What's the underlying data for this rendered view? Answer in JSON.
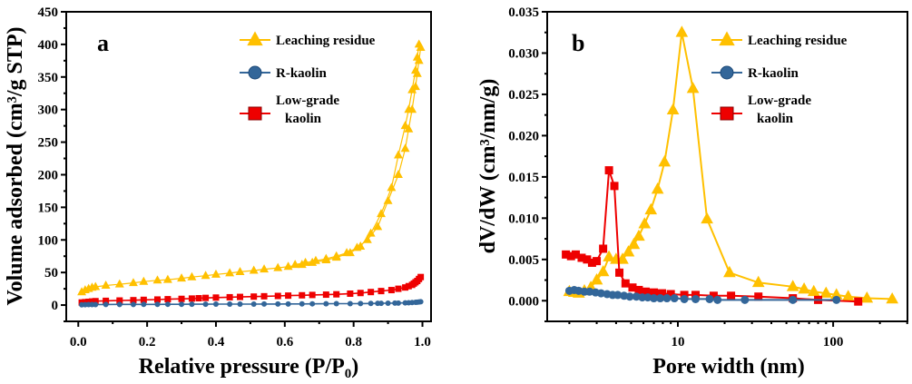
{
  "colors": {
    "leaching": "#FFC000",
    "rkaolin": "#336699",
    "lowgrade": "#EE0000"
  },
  "chart_data": [
    {
      "type": "line",
      "panel_label": "a",
      "xlabel": "Relative pressure (P/P",
      "xlabel_sub": "0",
      "xlabel_end": ")",
      "ylabel": "Volume adsorbed (cm³/g STP)",
      "xlim": [
        -0.035,
        1.025
      ],
      "ylim": [
        -25,
        450
      ],
      "xticks": [
        0.0,
        0.2,
        0.4,
        0.6,
        0.8,
        1.0
      ],
      "xtick_labels": [
        "0.0",
        "0.2",
        "0.4",
        "0.6",
        "0.8",
        "1.0"
      ],
      "yticks": [
        0,
        50,
        100,
        150,
        200,
        250,
        300,
        350,
        400,
        450
      ],
      "ytick_labels": [
        "0",
        "50",
        "100",
        "150",
        "200",
        "250",
        "300",
        "350",
        "400",
        "450"
      ],
      "legend_position": "top-right",
      "series": [
        {
          "name": "Leaching residue",
          "color_key": "leaching",
          "marker": "triangle",
          "x": [
            0.01,
            0.02,
            0.03,
            0.04,
            0.05,
            0.08,
            0.12,
            0.16,
            0.19,
            0.23,
            0.26,
            0.3,
            0.33,
            0.37,
            0.4,
            0.44,
            0.47,
            0.51,
            0.54,
            0.58,
            0.61,
            0.65,
            0.68,
            0.72,
            0.75,
            0.79,
            0.82,
            0.85,
            0.88,
            0.91,
            0.93,
            0.95,
            0.96,
            0.97,
            0.98,
            0.985,
            0.99,
            0.995,
            0.99,
            0.985,
            0.98,
            0.97,
            0.96,
            0.95,
            0.93,
            0.9,
            0.87,
            0.84,
            0.81,
            0.78,
            0.75,
            0.72,
            0.69,
            0.66,
            0.63
          ],
          "y": [
            20,
            23,
            25,
            27,
            28,
            30,
            32,
            34,
            36,
            38,
            39,
            41,
            43,
            45,
            47,
            49,
            51,
            53,
            55,
            57,
            59,
            62,
            65,
            69,
            73,
            80,
            90,
            110,
            140,
            180,
            230,
            275,
            300,
            330,
            360,
            380,
            400,
            395,
            375,
            355,
            335,
            300,
            270,
            240,
            200,
            160,
            120,
            100,
            88,
            80,
            75,
            71,
            68,
            65,
            62
          ]
        },
        {
          "name": "R-kaolin",
          "color_key": "rkaolin",
          "marker": "circle",
          "x": [
            0.01,
            0.02,
            0.03,
            0.04,
            0.05,
            0.08,
            0.12,
            0.16,
            0.19,
            0.23,
            0.26,
            0.3,
            0.33,
            0.37,
            0.4,
            0.44,
            0.47,
            0.51,
            0.54,
            0.58,
            0.61,
            0.65,
            0.68,
            0.72,
            0.75,
            0.79,
            0.82,
            0.85,
            0.87,
            0.88,
            0.9,
            0.92,
            0.93,
            0.95,
            0.96,
            0.97,
            0.98,
            0.985,
            0.99,
            0.995
          ],
          "y": [
            0.5,
            0.6,
            0.7,
            0.8,
            0.8,
            0.9,
            1.0,
            1.0,
            1.1,
            1.1,
            1.2,
            1.2,
            1.3,
            1.3,
            1.4,
            1.4,
            1.5,
            1.5,
            1.6,
            1.6,
            1.7,
            1.8,
            1.9,
            2.0,
            2.1,
            2.2,
            2.3,
            2.5,
            2.6,
            2.7,
            2.8,
            3.0,
            3.1,
            3.4,
            3.6,
            3.9,
            4.2,
            4.5,
            4.8,
            5.2
          ]
        },
        {
          "name": "Low-grade\nkaolin",
          "color_key": "lowgrade",
          "marker": "square",
          "x": [
            0.01,
            0.02,
            0.03,
            0.04,
            0.05,
            0.08,
            0.12,
            0.16,
            0.19,
            0.23,
            0.26,
            0.3,
            0.33,
            0.35,
            0.37,
            0.4,
            0.44,
            0.47,
            0.51,
            0.54,
            0.58,
            0.61,
            0.65,
            0.68,
            0.72,
            0.75,
            0.79,
            0.82,
            0.85,
            0.88,
            0.91,
            0.93,
            0.95,
            0.96,
            0.97,
            0.975,
            0.98,
            0.985,
            0.99,
            0.995
          ],
          "y": [
            4,
            4.5,
            5,
            5.5,
            6,
            6.5,
            7,
            7.5,
            8,
            8.5,
            9,
            9.5,
            10,
            10.5,
            11,
            11.5,
            12,
            12.5,
            13,
            13.5,
            14,
            14.5,
            15,
            15.5,
            16,
            16.5,
            17.5,
            18.5,
            20,
            21.5,
            23,
            25,
            27,
            29,
            31,
            33,
            35,
            37,
            40,
            43
          ]
        }
      ]
    },
    {
      "type": "line",
      "panel_label": "b",
      "xlabel": "Pore width (nm)",
      "ylabel": "dV/dW (cm³/nm/g)",
      "xscale": "log",
      "xlim": [
        1.44,
        301
      ],
      "ylim": [
        -0.0025,
        0.035
      ],
      "xticks": [
        10,
        100
      ],
      "xtick_labels": [
        "10",
        "100"
      ],
      "yticks": [
        0.0,
        0.005,
        0.01,
        0.015,
        0.02,
        0.025,
        0.03,
        0.035
      ],
      "ytick_labels": [
        "0.000",
        "0.005",
        "0.010",
        "0.015",
        "0.020",
        "0.025",
        "0.030",
        "0.035"
      ],
      "legend_position": "top-right",
      "series": [
        {
          "name": "Leaching residue",
          "color_key": "leaching",
          "marker": "triangle",
          "x": [
            2.0,
            2.15,
            2.3,
            2.5,
            2.75,
            3.0,
            3.3,
            3.6,
            4.0,
            4.4,
            4.8,
            5.2,
            5.6,
            6.1,
            6.7,
            7.4,
            8.2,
            9.3,
            10.6,
            12.5,
            15.4,
            21.5,
            33,
            55,
            65,
            75,
            90,
            105,
            125,
            165,
            240
          ],
          "y": [
            0.0011,
            0.001,
            0.0009,
            0.0012,
            0.0016,
            0.0025,
            0.0035,
            0.0053,
            0.005,
            0.005,
            0.0059,
            0.0068,
            0.0078,
            0.0093,
            0.011,
            0.0135,
            0.0168,
            0.0231,
            0.0325,
            0.0257,
            0.0099,
            0.0034,
            0.0022,
            0.0017,
            0.0014,
            0.0011,
            0.0009,
            0.0007,
            0.0005,
            0.0003,
            0.0002
          ]
        },
        {
          "name": "R-kaolin",
          "color_key": "rkaolin",
          "marker": "circle",
          "x": [
            2.0,
            2.15,
            2.3,
            2.5,
            2.7,
            2.95,
            3.2,
            3.5,
            3.8,
            4.1,
            4.5,
            4.9,
            5.4,
            5.9,
            6.4,
            7.0,
            7.7,
            8.5,
            9.5,
            11,
            13,
            16,
            18,
            27,
            55,
            105
          ],
          "y": [
            0.0012,
            0.0013,
            0.0012,
            0.0011,
            0.0011,
            0.001,
            0.0009,
            0.0008,
            0.0007,
            0.0007,
            0.0006,
            0.0005,
            0.0005,
            0.0004,
            0.0004,
            0.0003,
            0.0003,
            0.0003,
            0.0003,
            0.0002,
            0.0002,
            0.0002,
            0.0001,
            0.0001,
            0.0001,
            0.0001
          ]
        },
        {
          "name": "Low-grade\nkaolin",
          "color_key": "lowgrade",
          "marker": "square",
          "x": [
            1.9,
            2.05,
            2.2,
            2.4,
            2.6,
            2.8,
            3.0,
            3.3,
            3.6,
            3.9,
            4.2,
            4.6,
            5.1,
            5.6,
            6.2,
            7.0,
            7.9,
            9.0,
            11,
            13,
            17,
            22,
            33,
            55,
            80,
            145
          ],
          "y": [
            0.0056,
            0.0054,
            0.0056,
            0.0052,
            0.005,
            0.0046,
            0.0048,
            0.0063,
            0.0158,
            0.0139,
            0.0034,
            0.0021,
            0.0016,
            0.0013,
            0.0011,
            0.001,
            0.0009,
            0.0008,
            0.0007,
            0.0007,
            0.0006,
            0.0006,
            0.0005,
            0.0003,
            0.0001,
            -0.0001
          ]
        }
      ]
    }
  ]
}
